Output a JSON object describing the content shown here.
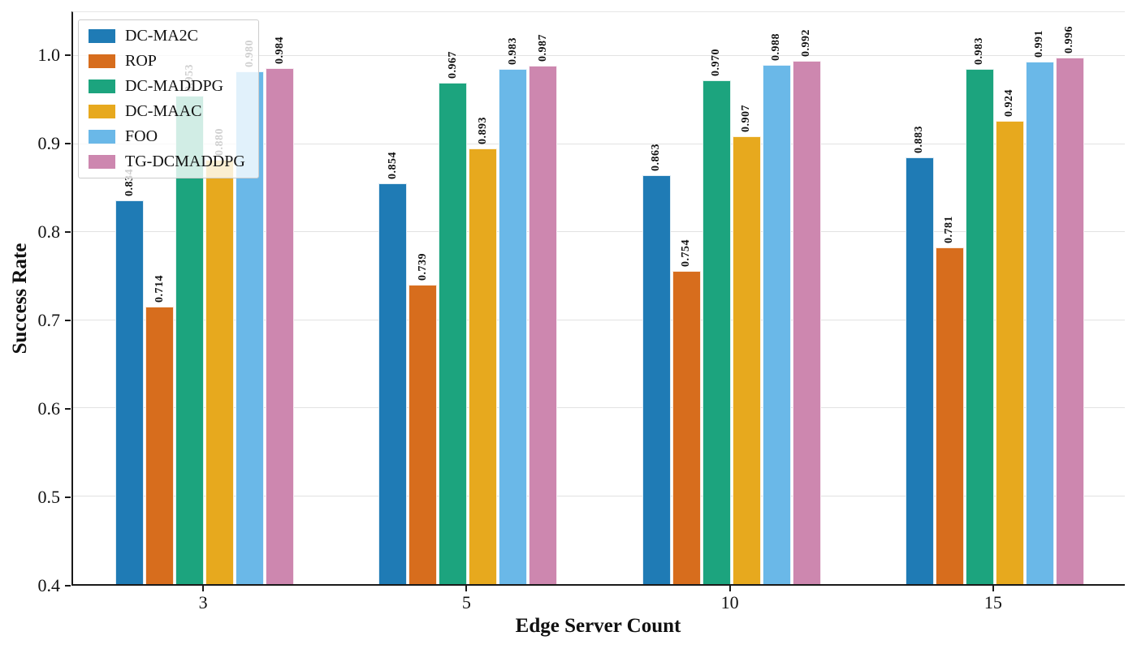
{
  "chart_data": {
    "type": "bar",
    "title": "",
    "xlabel": "Edge Server Count",
    "ylabel": "Success Rate",
    "categories": [
      "3",
      "5",
      "10",
      "15"
    ],
    "series": [
      {
        "name": "DC-MA2C",
        "color": "#1f7bb5",
        "values": [
          0.834,
          0.854,
          0.863,
          0.883
        ]
      },
      {
        "name": "ROP",
        "color": "#d76d1d",
        "values": [
          0.714,
          0.739,
          0.754,
          0.781
        ]
      },
      {
        "name": "DC-MADDPG",
        "color": "#1ca47e",
        "values": [
          0.953,
          0.967,
          0.97,
          0.983
        ]
      },
      {
        "name": "DC-MAAC",
        "color": "#e7a91e",
        "values": [
          0.88,
          0.893,
          0.907,
          0.924
        ]
      },
      {
        "name": "FOO",
        "color": "#6ab8e8",
        "values": [
          0.98,
          0.983,
          0.988,
          0.991
        ]
      },
      {
        "name": "TG-DCMADDPG",
        "color": "#cd87af",
        "values": [
          0.984,
          0.987,
          0.992,
          0.996
        ]
      }
    ],
    "ylim": [
      0.4,
      1.05
    ],
    "yticks": [
      0.4,
      0.5,
      0.6,
      0.7,
      0.8,
      0.9,
      1.0
    ],
    "grid": "horizontal",
    "legend_position": "upper-left",
    "bar_value_decimals": 3,
    "style_colors": {
      "axis": "#1a1a1a",
      "grid": "#e2e2e2",
      "legend_border": "#cccccc",
      "legend_background": "rgba(255,255,255,0.8)"
    }
  }
}
